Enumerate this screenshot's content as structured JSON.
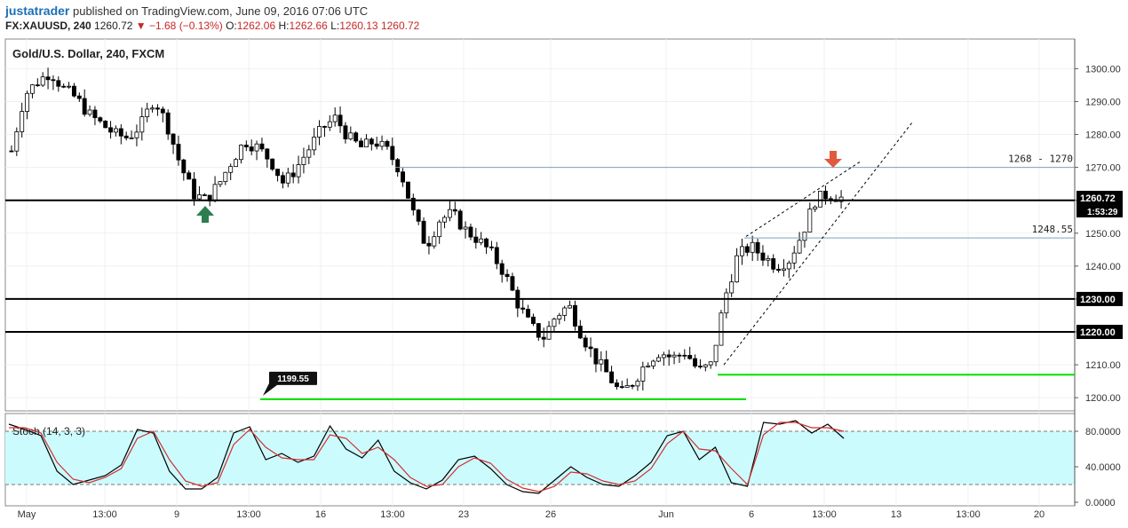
{
  "header": {
    "author": "justatrader",
    "published_text": "published on TradingView.com, June 09, 2016 07:06 UTC",
    "symbol": "FX:XAUUSD, 240",
    "last": "1260.72",
    "change": "▼ −1.68 (−0.13%)",
    "o_label": "O:",
    "o_val": "1262.06",
    "h_label": "H:",
    "h_val": "1262.66",
    "l_label": "L:",
    "l_val": "1260.13",
    "c_val": "1260.72"
  },
  "chart_data": [
    {
      "type": "candlestick",
      "title": "Gold/U.S. Dollar, 240, FXCM",
      "y_ticks": [
        "1300.00",
        "1290.00",
        "1280.00",
        "1270.00",
        "1260.00",
        "1250.00",
        "1240.00",
        "1230.00",
        "1220.00",
        "1210.00",
        "1200.00"
      ],
      "ylim": [
        1196,
        1309
      ],
      "x_ticks": [
        "May",
        "13:00",
        "9",
        "13:00",
        "16",
        "13:00",
        "23",
        "26",
        "Jun",
        "6",
        "13:00",
        "13",
        "13:00",
        "20"
      ],
      "price_close_sampled": [
        1275,
        1292,
        1296,
        1299,
        1294,
        1291,
        1286,
        1283,
        1280,
        1279,
        1283,
        1291,
        1283,
        1271,
        1262,
        1260,
        1265,
        1272,
        1278,
        1276,
        1272,
        1265,
        1270,
        1276,
        1282,
        1285,
        1279,
        1276,
        1278,
        1275,
        1269,
        1256,
        1246,
        1254,
        1256,
        1251,
        1248,
        1244,
        1238,
        1229,
        1222,
        1218,
        1225,
        1228,
        1219,
        1212,
        1207,
        1201,
        1205,
        1211,
        1214,
        1212,
        1214,
        1208,
        1210,
        1230,
        1243,
        1246,
        1243,
        1240,
        1242,
        1250,
        1260,
        1262,
        1260.72
      ],
      "horizontal_levels": [
        {
          "price": 1260,
          "label": "",
          "color": "#000000"
        },
        {
          "price": 1230,
          "label": "1230.00",
          "color": "#000000"
        },
        {
          "price": 1220,
          "label": "1220.00",
          "color": "#000000"
        }
      ],
      "zones": [
        {
          "price": 1270,
          "label": "1268 - 1270"
        },
        {
          "price": 1248.55,
          "label": "1248.55"
        }
      ],
      "support_lines": [
        {
          "price": 1199.55,
          "label": "1199.55",
          "color": "#00e000"
        },
        {
          "price": 1207,
          "label": "",
          "color": "#00e000"
        }
      ],
      "last_price_label": "1260.72",
      "countdown_label": "1:53:29",
      "markers": [
        {
          "kind": "up-arrow",
          "color": "#2e7d4f"
        },
        {
          "kind": "down-arrow",
          "color": "#e05a40"
        }
      ]
    },
    {
      "type": "line",
      "title": "Stoch (14, 3, 3)",
      "y_ticks": [
        "80.0000",
        "40.0000",
        "0.0000"
      ],
      "ylim": [
        0,
        100
      ],
      "band": [
        20,
        80
      ],
      "series": [
        {
          "color": "#000000",
          "values": [
            88,
            82,
            75,
            35,
            20,
            25,
            30,
            42,
            82,
            78,
            35,
            15,
            15,
            28,
            78,
            85,
            48,
            55,
            45,
            52,
            86,
            60,
            50,
            70,
            35,
            22,
            15,
            25,
            48,
            52,
            38,
            20,
            12,
            10,
            25,
            40,
            28,
            20,
            18,
            30,
            45,
            75,
            80,
            48,
            62,
            22,
            18,
            90,
            88,
            92,
            78,
            88,
            72
          ]
        },
        {
          "color": "#d32f2f",
          "values": [
            84,
            84,
            78,
            45,
            26,
            22,
            28,
            38,
            72,
            80,
            48,
            24,
            18,
            22,
            65,
            82,
            62,
            50,
            48,
            48,
            76,
            72,
            55,
            62,
            48,
            28,
            18,
            20,
            40,
            50,
            44,
            26,
            16,
            12,
            18,
            34,
            32,
            24,
            20,
            24,
            38,
            66,
            80,
            60,
            58,
            38,
            20,
            76,
            90,
            90,
            84,
            84,
            80
          ]
        }
      ]
    }
  ],
  "colors": {
    "up": "#ffffff",
    "down": "#000000",
    "band_fill": "#ccfbfe",
    "accent": "#1c6fb5"
  }
}
